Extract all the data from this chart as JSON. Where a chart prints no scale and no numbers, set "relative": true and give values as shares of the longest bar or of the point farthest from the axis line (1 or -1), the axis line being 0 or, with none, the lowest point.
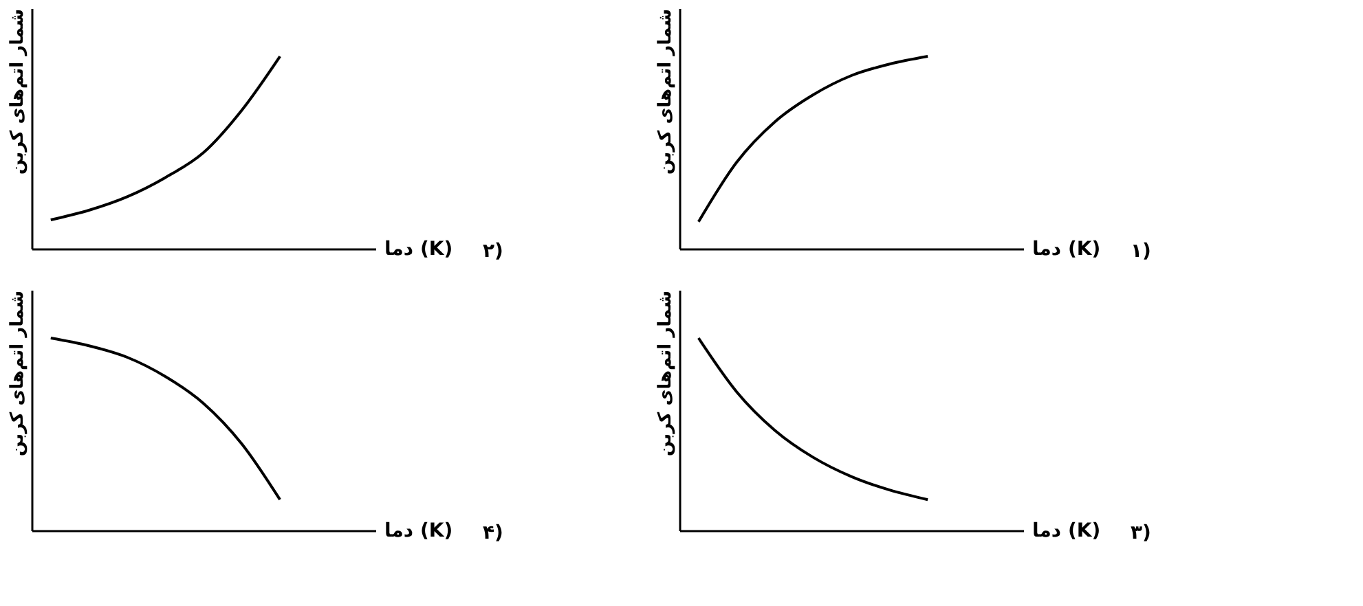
{
  "chart_data": [
    {
      "type": "line",
      "relative": true,
      "xlabel": "دما (K)",
      "ylabel": "شمار اتم‌های کربن",
      "annotations": [
        "۱)"
      ],
      "categories": [
        null,
        null,
        null,
        null,
        null,
        null,
        null,
        null,
        null
      ],
      "grid": false,
      "tick_labels": false,
      "marker": "none",
      "line_style": "solid",
      "series": [
        {
          "color": "#000000",
          "values": [
            0.14,
            0.45,
            0.66,
            0.8,
            0.9,
            0.96,
            1,
            null,
            null
          ]
        }
      ]
    },
    {
      "type": "line",
      "relative": true,
      "xlabel": "دما (K)",
      "ylabel": "شمار اتم‌های کربن",
      "annotations": [
        "۲)"
      ],
      "categories": [
        null,
        null,
        null,
        null,
        null,
        null,
        null,
        null,
        null
      ],
      "grid": false,
      "tick_labels": false,
      "marker": "none",
      "line_style": "solid",
      "series": [
        {
          "color": "#000000",
          "values": [
            0.15,
            0.2,
            0.27,
            0.37,
            0.5,
            0.72,
            1,
            null,
            null
          ]
        }
      ]
    },
    {
      "type": "line",
      "relative": true,
      "xlabel": "دما (K)",
      "ylabel": "شمار اتم‌های کربن",
      "annotations": [
        "۳)"
      ],
      "categories": [
        null,
        null,
        null,
        null,
        null,
        null,
        null,
        null,
        null
      ],
      "grid": false,
      "tick_labels": false,
      "marker": "none",
      "line_style": "solid",
      "series": [
        {
          "color": "#000000",
          "values": [
            1,
            0.72,
            0.52,
            0.38,
            0.28,
            0.21,
            0.16,
            null,
            null
          ]
        }
      ]
    },
    {
      "type": "line",
      "relative": true,
      "xlabel": "دما (K)",
      "ylabel": "شمار اتم‌های کربن",
      "annotations": [
        "۴)"
      ],
      "categories": [
        null,
        null,
        null,
        null,
        null,
        null,
        null,
        null,
        null
      ],
      "grid": false,
      "tick_labels": false,
      "marker": "none",
      "line_style": "solid",
      "series": [
        {
          "color": "#000000",
          "values": [
            1,
            0.96,
            0.9,
            0.8,
            0.66,
            0.45,
            0.16,
            null,
            null
          ]
        }
      ]
    }
  ]
}
